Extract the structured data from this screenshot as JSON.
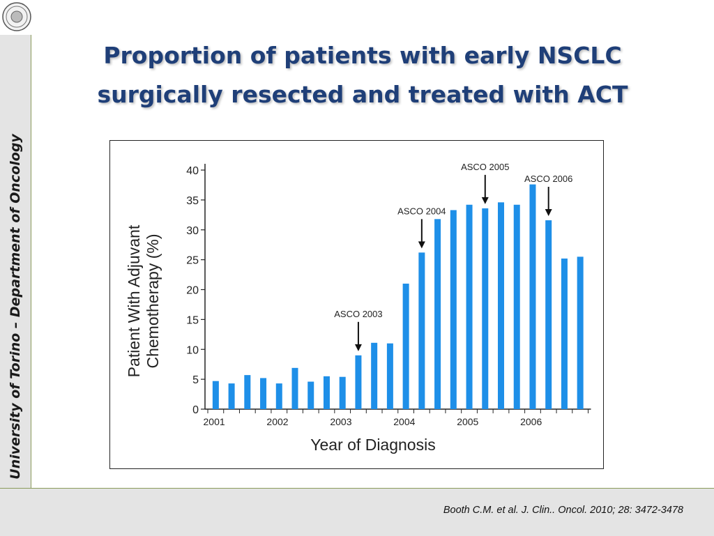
{
  "slide": {
    "title_line1": "Proportion of patients with early NSCLC",
    "title_line2": "surgically resected and treated with ACT",
    "sidebar_text": "University of Torino – Department of Oncology",
    "citation": "Booth C.M. et al. J. Clin.. Oncol. 2010; 28: 3472-3478",
    "colors": {
      "title": "#1f3f78",
      "bar": "#1e8fe8",
      "frame_accent": "#8a9a5b",
      "frame_bg": "#e4e4e4"
    },
    "logo_icon": "university-seal-icon"
  },
  "chart_data": {
    "type": "bar",
    "xlabel": "Year of Diagnosis",
    "ylabel_line1": "Patient With Adjuvant",
    "ylabel_line2": "Chemotherapy (%)",
    "ylim": [
      0,
      40
    ],
    "yticks": [
      0,
      5,
      10,
      15,
      20,
      25,
      30,
      35,
      40
    ],
    "xticks": [
      "2001",
      "2002",
      "2003",
      "2004",
      "2005",
      "2006"
    ],
    "x_period": "quarterly (4 bars per year, 2001–2006)",
    "values": [
      4.7,
      4.3,
      5.7,
      5.2,
      4.3,
      6.9,
      4.6,
      5.5,
      5.4,
      9.0,
      11.1,
      11.0,
      21.0,
      26.2,
      31.8,
      33.3,
      34.2,
      33.6,
      34.6,
      34.2,
      37.6,
      31.6,
      25.2,
      25.5
    ],
    "annotations": [
      {
        "label": "ASCO 2003",
        "bar_index": 9
      },
      {
        "label": "ASCO 2004",
        "bar_index": 13
      },
      {
        "label": "ASCO 2005",
        "bar_index": 17
      },
      {
        "label": "ASCO 2006",
        "bar_index": 21
      }
    ],
    "grid": false,
    "legend": "none"
  }
}
